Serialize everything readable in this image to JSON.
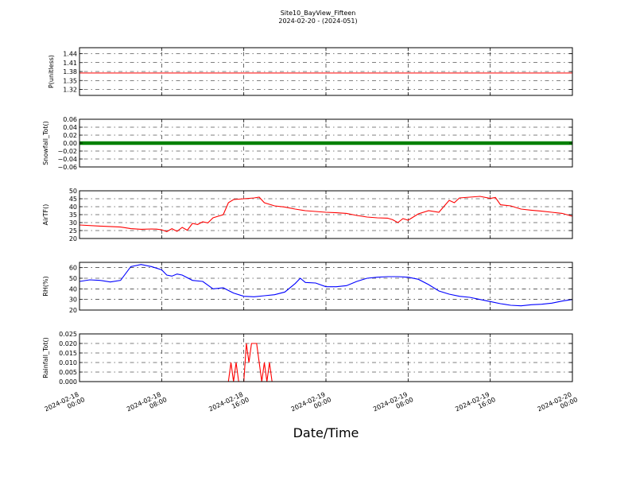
{
  "title": "Site10_BayView_Fifteen",
  "subtitle": "2024-02-20 - (2024-051)",
  "xlabel": "Date/Time",
  "x_ticks": [
    {
      "l1": "2024-02-18",
      "l2": "00:00"
    },
    {
      "l1": "2024-02-18",
      "l2": "08:00"
    },
    {
      "l1": "2024-02-18",
      "l2": "16:00"
    },
    {
      "l1": "2024-02-19",
      "l2": "00:00"
    },
    {
      "l1": "2024-02-19",
      "l2": "08:00"
    },
    {
      "l1": "2024-02-19",
      "l2": "16:00"
    },
    {
      "l1": "2024-02-20",
      "l2": "00:00"
    }
  ],
  "chart_data": [
    {
      "type": "line",
      "ylabel": "P(unitless)",
      "color": "#ff0000",
      "ylim": [
        1.3,
        1.46
      ],
      "yticks": [
        1.32,
        1.35,
        1.38,
        1.41,
        1.44
      ],
      "ytick_labels": [
        "1.32",
        "1.35",
        "1.38",
        "1.41",
        "1.44"
      ],
      "grid": true,
      "x": [
        0,
        48
      ],
      "y": [
        1.375,
        1.375
      ]
    },
    {
      "type": "line",
      "ylabel": "Snowfall_Tot()",
      "color": "#008000",
      "marker": "dots",
      "ylim": [
        -0.06,
        0.06
      ],
      "yticks": [
        -0.06,
        -0.04,
        -0.02,
        0.0,
        0.02,
        0.04,
        0.06
      ],
      "ytick_labels": [
        "−0.06",
        "−0.04",
        "−0.02",
        "0.00",
        "0.02",
        "0.04",
        "0.06"
      ],
      "grid": true,
      "x": [
        0,
        48
      ],
      "y": [
        0,
        0
      ]
    },
    {
      "type": "line",
      "ylabel": "AirTF()",
      "color": "#ff0000",
      "ylim": [
        20,
        50
      ],
      "yticks": [
        20,
        25,
        30,
        35,
        40,
        45,
        50
      ],
      "ytick_labels": [
        "20",
        "25",
        "30",
        "35",
        "40",
        "45",
        "50"
      ],
      "grid": true,
      "x": [
        0,
        2,
        4,
        5,
        6,
        7,
        7.5,
        8,
        8.5,
        9,
        9.5,
        10,
        10.5,
        11,
        11.5,
        12,
        12.5,
        13,
        13.5,
        14,
        14.5,
        15,
        16,
        17,
        17.5,
        18,
        19,
        20,
        21,
        22,
        23,
        24,
        25,
        26,
        27,
        28,
        29,
        30,
        30.5,
        31,
        31.5,
        32,
        33,
        34,
        35,
        36,
        36.5,
        37,
        38,
        39,
        40,
        40.5,
        41,
        42,
        43,
        44,
        45,
        46,
        47,
        48
      ],
      "y": [
        28.5,
        27.8,
        27.2,
        26.2,
        25.8,
        26,
        25.9,
        25.5,
        24.3,
        26.2,
        24.5,
        27,
        25.2,
        29.5,
        28.8,
        30.5,
        29.8,
        33,
        34,
        35,
        42.5,
        44.5,
        45,
        45.5,
        46,
        42.5,
        40.5,
        39.8,
        38.5,
        37.5,
        37,
        36.5,
        36.2,
        35.8,
        34.5,
        33.5,
        33,
        32.8,
        31.8,
        30,
        32.5,
        31.5,
        35.5,
        37.5,
        36.5,
        44,
        42.5,
        45.5,
        46,
        46.5,
        45.2,
        45.8,
        41.2,
        40.5,
        38.5,
        37.8,
        37.2,
        36.5,
        35.8,
        34
      ]
    },
    {
      "type": "line",
      "ylabel": "RH(%)",
      "color": "#0000ff",
      "ylim": [
        20,
        65
      ],
      "yticks": [
        20,
        30,
        40,
        50,
        60
      ],
      "ytick_labels": [
        "20",
        "30",
        "40",
        "50",
        "60"
      ],
      "grid": true,
      "x": [
        0,
        1,
        2,
        3,
        4,
        5,
        6,
        7,
        8,
        8.5,
        9,
        9.5,
        10,
        11,
        12,
        13,
        13.5,
        14,
        14.5,
        15,
        16,
        17,
        18,
        19,
        20,
        21,
        21.5,
        22,
        23,
        24,
        25,
        26,
        27,
        28,
        29,
        30,
        31,
        32,
        33,
        34,
        35,
        36,
        37,
        38,
        39,
        40,
        41,
        42,
        43,
        44,
        45,
        46,
        47,
        48
      ],
      "y": [
        47,
        48.5,
        48,
        46.5,
        48,
        61,
        63,
        61,
        58,
        53,
        52,
        54,
        53,
        48,
        47,
        40,
        40.5,
        41,
        38.5,
        36,
        33,
        32.5,
        33.5,
        34.5,
        37,
        45,
        50,
        46,
        45.5,
        42,
        42,
        43,
        47,
        50,
        51,
        51.5,
        51.5,
        51,
        49,
        44,
        38,
        35,
        33,
        32,
        30,
        28,
        26,
        24.5,
        24,
        25,
        25.5,
        26.5,
        28.5,
        30
      ]
    },
    {
      "type": "line",
      "ylabel": "Rainfall_Tot()",
      "color": "#ff0000",
      "ylim": [
        0.0,
        0.025
      ],
      "yticks": [
        0.0,
        0.005,
        0.01,
        0.015,
        0.02,
        0.025
      ],
      "ytick_labels": [
        "0.000",
        "0.005",
        "0.010",
        "0.015",
        "0.020",
        "0.025"
      ],
      "grid": true,
      "x": [
        0,
        14.5,
        14.75,
        15,
        15.25,
        15.5,
        16,
        16.25,
        16.5,
        16.75,
        17,
        17.25,
        17.75,
        18,
        18.25,
        18.5,
        18.75,
        48
      ],
      "y": [
        0,
        0,
        0.01,
        0,
        0.01,
        0,
        0,
        0.02,
        0.01,
        0.02,
        0.02,
        0.02,
        0,
        0.01,
        0,
        0.01,
        0,
        0
      ]
    }
  ]
}
